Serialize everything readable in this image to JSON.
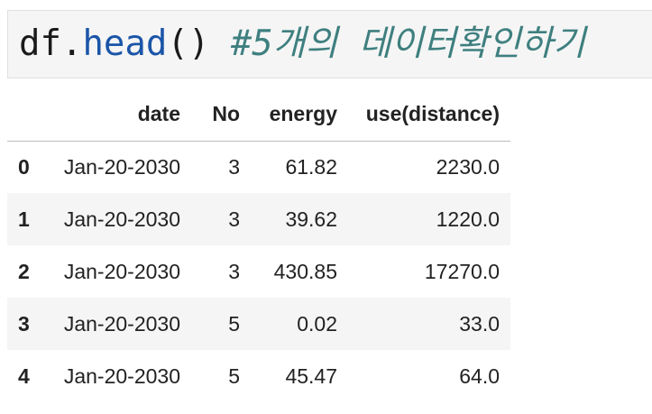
{
  "cell": {
    "code_object": "df",
    "code_dot": ".",
    "code_method": "head",
    "code_parens": "()",
    "code_comment": "#5개의 데이터확인하기"
  },
  "table": {
    "columns": [
      "",
      "date",
      "No",
      "energy",
      "use(distance)"
    ],
    "rows": [
      {
        "index": "0",
        "date": "Jan-20-2030",
        "no": "3",
        "energy": "61.82",
        "use": "2230.0"
      },
      {
        "index": "1",
        "date": "Jan-20-2030",
        "no": "3",
        "energy": "39.62",
        "use": "1220.0"
      },
      {
        "index": "2",
        "date": "Jan-20-2030",
        "no": "3",
        "energy": "430.85",
        "use": "17270.0"
      },
      {
        "index": "3",
        "date": "Jan-20-2030",
        "no": "5",
        "energy": "0.02",
        "use": "33.0"
      },
      {
        "index": "4",
        "date": "Jan-20-2030",
        "no": "5",
        "energy": "45.47",
        "use": "64.0"
      }
    ]
  }
}
